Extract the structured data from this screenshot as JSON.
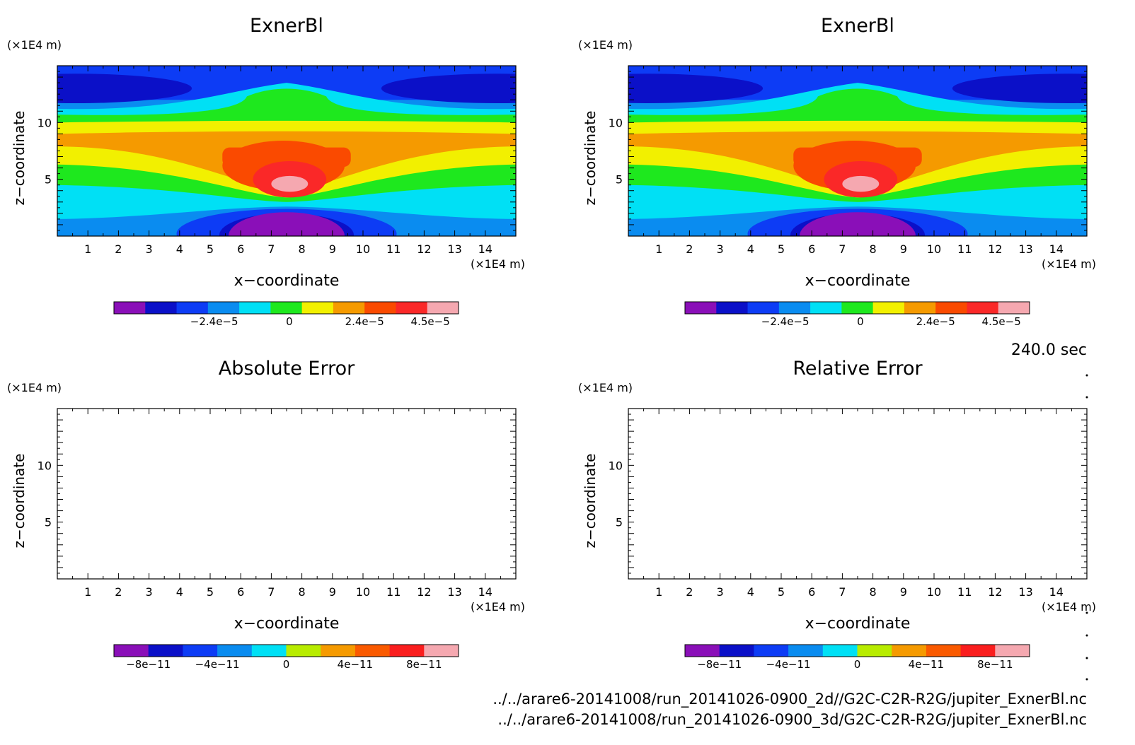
{
  "colors": {
    "contour_palette": [
      "#8a0fb8",
      "#0b10c8",
      "#0d3cf5",
      "#0a8cf0",
      "#00e0f5",
      "#1ee81e",
      "#f2f000",
      "#f59a00",
      "#fa4a00",
      "#fa2828",
      "#f5a8b0"
    ],
    "error_palette": [
      "#8a0fb8",
      "#0b10c8",
      "#0d3cf5",
      "#0a8cf0",
      "#00e0f5",
      "#b8ec00",
      "#f59a00",
      "#fa5a00",
      "#fa1e1e",
      "#f5a8b0"
    ]
  },
  "annotations": {
    "time_label": "240.0 sec",
    "file_paths": [
      "../../arare6-20141008/run_20141026-0900_2d//G2C-C2R-R2G/jupiter_ExnerBl.nc",
      "../../arare6-20141008/run_20141026-0900_3d/G2C-C2R-R2G/jupiter_ExnerBl.nc"
    ]
  },
  "chart_data": [
    {
      "type": "heatmap",
      "title": "ExnerBl",
      "xlabel": "x−coordinate",
      "ylabel": "z−coordinate",
      "x_unit": "(×1E4 m)",
      "y_unit": "(×1E4 m)",
      "xlim": [
        0,
        15
      ],
      "ylim": [
        0,
        15
      ],
      "xticks": [
        "1",
        "2",
        "3",
        "4",
        "5",
        "6",
        "7",
        "8",
        "9",
        "10",
        "11",
        "12",
        "13",
        "14"
      ],
      "yticks": [
        "5",
        "10"
      ],
      "colorbar": {
        "labels": [
          "−2.4e−5",
          "0",
          "2.4e−5",
          "4.5e−5"
        ],
        "values": [
          -2.4e-05,
          0,
          2.4e-05,
          4.5e-05
        ]
      }
    },
    {
      "type": "heatmap",
      "title": "ExnerBl",
      "xlabel": "x−coordinate",
      "ylabel": "z−coordinate",
      "x_unit": "(×1E4 m)",
      "y_unit": "(×1E4 m)",
      "xlim": [
        0,
        15
      ],
      "ylim": [
        0,
        15
      ],
      "xticks": [
        "1",
        "2",
        "3",
        "4",
        "5",
        "6",
        "7",
        "8",
        "9",
        "10",
        "11",
        "12",
        "13",
        "14"
      ],
      "yticks": [
        "5",
        "10"
      ],
      "colorbar": {
        "labels": [
          "−2.4e−5",
          "0",
          "2.4e−5",
          "4.5e−5"
        ],
        "values": [
          -2.4e-05,
          0,
          2.4e-05,
          4.5e-05
        ]
      }
    },
    {
      "type": "heatmap",
      "title": "Absolute Error",
      "xlabel": "x−coordinate",
      "ylabel": "z−coordinate",
      "x_unit": "(×1E4 m)",
      "y_unit": "(×1E4 m)",
      "xlim": [
        0,
        15
      ],
      "ylim": [
        0,
        15
      ],
      "xticks": [
        "1",
        "2",
        "3",
        "4",
        "5",
        "6",
        "7",
        "8",
        "9",
        "10",
        "11",
        "12",
        "13",
        "14"
      ],
      "yticks": [
        "5",
        "10"
      ],
      "colorbar": {
        "labels": [
          "−8e−11",
          "−4e−11",
          "0",
          "4e−11",
          "8e−11"
        ],
        "values": [
          -8e-11,
          -4e-11,
          0,
          4e-11,
          8e-11
        ]
      }
    },
    {
      "type": "heatmap",
      "title": "Relative Error",
      "xlabel": "x−coordinate",
      "ylabel": "z−coordinate",
      "x_unit": "(×1E4 m)",
      "y_unit": "(×1E4 m)",
      "xlim": [
        0,
        15
      ],
      "ylim": [
        0,
        15
      ],
      "xticks": [
        "1",
        "2",
        "3",
        "4",
        "5",
        "6",
        "7",
        "8",
        "9",
        "10",
        "11",
        "12",
        "13",
        "14"
      ],
      "yticks": [
        "5",
        "10"
      ],
      "colorbar": {
        "labels": [
          "−8e−11",
          "−4e−11",
          "0",
          "4e−11",
          "8e−11"
        ],
        "values": [
          -8e-11,
          -4e-11,
          0,
          4e-11,
          8e-11
        ]
      }
    }
  ]
}
